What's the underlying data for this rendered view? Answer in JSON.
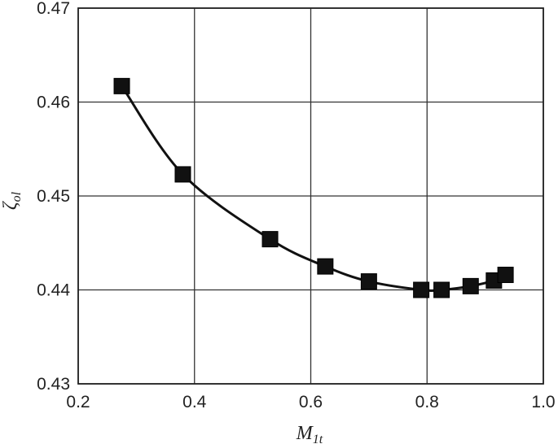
{
  "chart_data": {
    "type": "line",
    "title": "",
    "xlabel": {
      "main": "M",
      "sub": "1t"
    },
    "ylabel": {
      "main": "ζ",
      "sub": "ol"
    },
    "xlim": [
      0.2,
      1.0
    ],
    "ylim": [
      0.43,
      0.47
    ],
    "xticks": [
      0.2,
      0.4,
      0.6,
      0.8,
      1.0
    ],
    "yticks": [
      0.43,
      0.44,
      0.45,
      0.46,
      0.47
    ],
    "xtick_labels": [
      "0.2",
      "0.4",
      "0.6",
      "0.8",
      "1.0"
    ],
    "ytick_labels": [
      "0.43",
      "0.44",
      "0.45",
      "0.46",
      "0.47"
    ],
    "grid": true,
    "legend": "none",
    "marker": "square",
    "color": "#111111",
    "series": [
      {
        "x": [
          0.275,
          0.38,
          0.53,
          0.625,
          0.7,
          0.79,
          0.825,
          0.875,
          0.915,
          0.935
        ],
        "y": [
          0.4617,
          0.4523,
          0.4454,
          0.4425,
          0.4409,
          0.44,
          0.44,
          0.4404,
          0.441,
          0.4416
        ]
      }
    ]
  }
}
